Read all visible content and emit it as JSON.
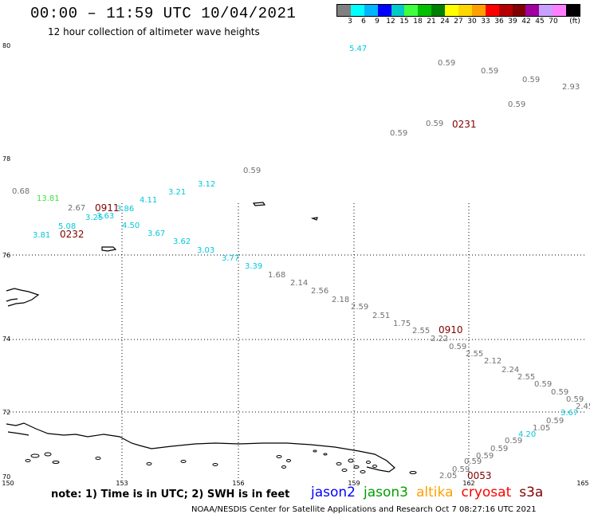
{
  "header": {
    "title": "00:00 – 11:59 UTC 10/04/2021",
    "subtitle": "12 hour collection of altimeter wave heights"
  },
  "legend": {
    "unit": "(ft)",
    "colors": [
      "#808080",
      "#00ffff",
      "#00b4ff",
      "#0000ff",
      "#00c8c8",
      "#40ff40",
      "#00c000",
      "#008000",
      "#ffff00",
      "#ffd700",
      "#ffa000",
      "#ff0000",
      "#b40000",
      "#800000",
      "#a000a0",
      "#c8a0ff",
      "#ff80ff",
      "#000000"
    ],
    "labels": [
      "3",
      "6",
      "9",
      "12",
      "15",
      "18",
      "21",
      "24",
      "27",
      "30",
      "33",
      "36",
      "39",
      "42",
      "45",
      "70"
    ]
  },
  "axes": {
    "lat_labels": [
      "80",
      "78",
      "76",
      "74",
      "72",
      "70"
    ],
    "lon_labels": [
      "150",
      "153",
      "156",
      "159",
      "162",
      "165"
    ]
  },
  "observations": [
    {
      "value": "5.47",
      "color": "#00c8dc"
    },
    {
      "value": "0.59",
      "color": "#707070"
    },
    {
      "value": "0.59",
      "color": "#707070"
    },
    {
      "value": "0.59",
      "color": "#707070"
    },
    {
      "value": "2.93",
      "color": "#707070"
    },
    {
      "value": "0.59",
      "color": "#707070"
    },
    {
      "value": "0.59",
      "color": "#707070"
    },
    {
      "value": "0.59",
      "color": "#707070"
    },
    {
      "value": "0.59",
      "color": "#707070"
    },
    {
      "value": "0.68",
      "color": "#707070"
    },
    {
      "value": "13.81",
      "color": "#40e040"
    },
    {
      "value": "2.67",
      "color": "#707070"
    },
    {
      "value": "3.12",
      "color": "#00c8dc"
    },
    {
      "value": "3.21",
      "color": "#00c8dc"
    },
    {
      "value": "4.11",
      "color": "#00c8dc"
    },
    {
      "value": "3.86",
      "color": "#00c8dc"
    },
    {
      "value": "3.25",
      "color": "#00c8dc"
    },
    {
      "value": "3.63",
      "color": "#00c8dc"
    },
    {
      "value": "4.50",
      "color": "#00c8dc"
    },
    {
      "value": "5.08",
      "color": "#00c8dc"
    },
    {
      "value": "3.81",
      "color": "#00c8dc"
    },
    {
      "value": "3.67",
      "color": "#00c8dc"
    },
    {
      "value": "3.62",
      "color": "#00c8dc"
    },
    {
      "value": "3.03",
      "color": "#00c8dc"
    },
    {
      "value": "3.77",
      "color": "#00c8dc"
    },
    {
      "value": "3.39",
      "color": "#00c8dc"
    },
    {
      "value": "1.68",
      "color": "#707070"
    },
    {
      "value": "2.14",
      "color": "#707070"
    },
    {
      "value": "2.56",
      "color": "#707070"
    },
    {
      "value": "2.18",
      "color": "#707070"
    },
    {
      "value": "2.59",
      "color": "#707070"
    },
    {
      "value": "2.51",
      "color": "#707070"
    },
    {
      "value": "1.75",
      "color": "#707070"
    },
    {
      "value": "2.55",
      "color": "#707070"
    },
    {
      "value": "2.22",
      "color": "#707070"
    },
    {
      "value": "0.59",
      "color": "#707070"
    },
    {
      "value": "2.55",
      "color": "#707070"
    },
    {
      "value": "2.12",
      "color": "#707070"
    },
    {
      "value": "2.24",
      "color": "#707070"
    },
    {
      "value": "2.55",
      "color": "#707070"
    },
    {
      "value": "0.59",
      "color": "#707070"
    },
    {
      "value": "0.59",
      "color": "#707070"
    },
    {
      "value": "0.59",
      "color": "#707070"
    },
    {
      "value": "2.45",
      "color": "#707070"
    },
    {
      "value": "3.67",
      "color": "#00c8dc"
    },
    {
      "value": "0.59",
      "color": "#707070"
    },
    {
      "value": "1.05",
      "color": "#707070"
    },
    {
      "value": "4.20",
      "color": "#00c8dc"
    },
    {
      "value": "0.59",
      "color": "#707070"
    },
    {
      "value": "0.59",
      "color": "#707070"
    },
    {
      "value": "0.59",
      "color": "#707070"
    },
    {
      "value": "0.59",
      "color": "#707070"
    },
    {
      "value": "0.59",
      "color": "#707070"
    },
    {
      "value": "2.05",
      "color": "#707070"
    }
  ],
  "pass_times": [
    {
      "value": "0231"
    },
    {
      "value": "0911"
    },
    {
      "value": "0232"
    },
    {
      "value": "0910"
    },
    {
      "value": "0053"
    }
  ],
  "footer": {
    "note": "note: 1) Time is in UTC; 2) SWH is in feet",
    "satellites": [
      {
        "name": "jason2",
        "color": "#0000ff"
      },
      {
        "name": "jason3",
        "color": "#00a000"
      },
      {
        "name": "altika",
        "color": "#ffa000"
      },
      {
        "name": "cryosat",
        "color": "#ff0000"
      },
      {
        "name": "s3a",
        "color": "#800000"
      }
    ],
    "credit": "NOAA/NESDIS Center for Satellite Applications and Research    Oct  7 08:27:16 UTC 2021"
  }
}
